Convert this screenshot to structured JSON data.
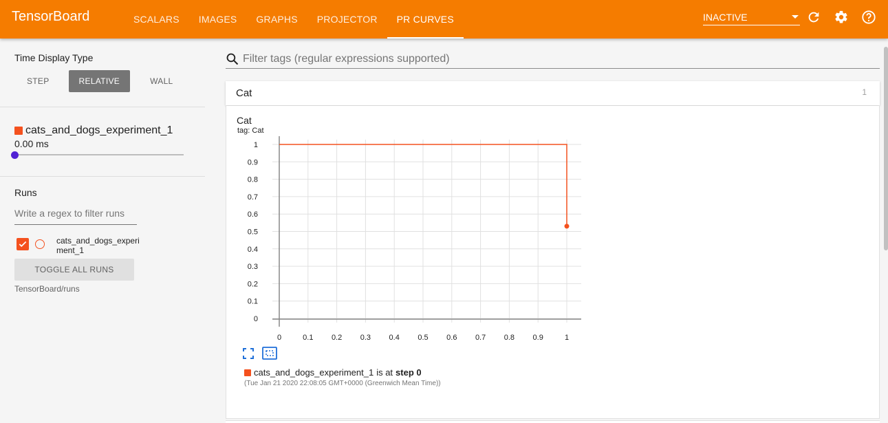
{
  "app": {
    "title": "TensorBoard"
  },
  "nav": {
    "tabs": [
      {
        "label": "SCALARS",
        "active": false
      },
      {
        "label": "IMAGES",
        "active": false
      },
      {
        "label": "GRAPHS",
        "active": false
      },
      {
        "label": "PROJECTOR",
        "active": false
      },
      {
        "label": "PR CURVES",
        "active": true
      }
    ],
    "dashboard_select": "INACTIVE",
    "icons": [
      "refresh-icon",
      "settings-icon",
      "help-icon"
    ]
  },
  "sidebar": {
    "time_display_title": "Time Display Type",
    "time_display_options": [
      "STEP",
      "RELATIVE",
      "WALL"
    ],
    "time_display_selected": "RELATIVE",
    "experiment": {
      "name": "cats_and_dogs_experiment_1",
      "time": "0.00 ms",
      "slider_fraction": 0
    },
    "runs_title": "Runs",
    "runs_filter_placeholder": "Write a regex to filter runs",
    "runs": [
      {
        "label": "cats_and_dogs_experiment_1",
        "checked": true
      }
    ],
    "toggle_all_label": "TOGGLE ALL RUNS",
    "logdir": "TensorBoard/runs"
  },
  "main": {
    "tag_filter_placeholder": "Filter tags (regular expressions supported)",
    "category": {
      "name": "Cat",
      "count": "1"
    },
    "card": {
      "title": "Cat",
      "tag": "tag: Cat",
      "legend_run": "cats_and_dogs_experiment_1",
      "legend_is_at": "is at",
      "legend_step": "step 0",
      "legend_time": "(Tue Jan 21 2020 22:08:05 GMT+0000 (Greenwich Mean Time))",
      "icons": [
        "fit-domain-icon",
        "zoom-area-icon"
      ]
    }
  },
  "colors": {
    "topbar": "#f57c00",
    "run": "#f4511e",
    "slider": "#5122d4"
  },
  "chart_data": {
    "type": "line",
    "title": "Cat",
    "subtitle": "tag: Cat",
    "xlim": [
      0,
      1
    ],
    "ylim": [
      0,
      1
    ],
    "x_ticks": [
      "0",
      "0.1",
      "0.2",
      "0.3",
      "0.4",
      "0.5",
      "0.6",
      "0.7",
      "0.8",
      "0.9",
      "1"
    ],
    "y_ticks": [
      "0",
      "0.1",
      "0.2",
      "0.3",
      "0.4",
      "0.5",
      "0.6",
      "0.7",
      "0.8",
      "0.9",
      "1"
    ],
    "grid": true,
    "series": [
      {
        "color": "#f4511e",
        "points": [
          [
            0,
            1
          ],
          [
            1,
            1
          ],
          [
            1,
            0.53
          ]
        ]
      }
    ]
  }
}
